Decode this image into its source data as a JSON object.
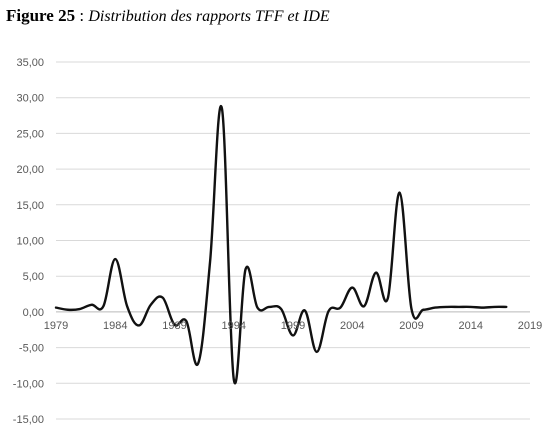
{
  "caption": {
    "figure_label": "Figure 25",
    "separator": " : ",
    "description": "Distribution des rapports TFF et IDE"
  },
  "chart_data": {
    "type": "line",
    "title": "",
    "xlabel": "",
    "ylabel": "",
    "xlim": [
      1979,
      2019
    ],
    "ylim": [
      -15,
      35
    ],
    "x_ticks": [
      1979,
      1984,
      1989,
      1994,
      1999,
      2004,
      2009,
      2014,
      2019
    ],
    "x_tick_labels": [
      "1979",
      "1984",
      "1989",
      "1994",
      "1999",
      "2004",
      "2009",
      "2014",
      "2019"
    ],
    "y_ticks": [
      -15,
      -10,
      -5,
      0,
      5,
      10,
      15,
      20,
      25,
      30,
      35
    ],
    "y_tick_labels": [
      "-15,00",
      "-10,00",
      "-5,00",
      "0,00",
      "5,00",
      "10,00",
      "15,00",
      "20,00",
      "25,00",
      "30,00",
      "35,00"
    ],
    "grid": "horizontal",
    "line_color": "#111111",
    "grid_color": "#d9d9d9",
    "series": [
      {
        "x": [
          1979,
          1980,
          1981,
          1982,
          1983,
          1984,
          1985,
          1986,
          1987,
          1988,
          1989,
          1990,
          1991,
          1992,
          1993,
          1994,
          1995,
          1996,
          1997,
          1998,
          1999,
          2000,
          2001,
          2002,
          2003,
          2004,
          2005,
          2006,
          2007,
          2008,
          2009,
          2010,
          2011,
          2012,
          2013,
          2014,
          2015,
          2016,
          2017
        ],
        "y": [
          0.6,
          0.3,
          0.4,
          1.0,
          0.8,
          7.4,
          0.8,
          -1.9,
          1.0,
          2.0,
          -1.8,
          -1.3,
          -7.2,
          7.0,
          28.5,
          -9.4,
          6.0,
          0.6,
          0.7,
          0.4,
          -3.3,
          0.2,
          -5.6,
          0.1,
          0.6,
          3.4,
          0.8,
          5.5,
          1.9,
          16.7,
          0.4,
          0.3,
          0.6,
          0.7,
          0.7,
          0.7,
          0.6,
          0.7,
          0.7
        ]
      }
    ]
  }
}
